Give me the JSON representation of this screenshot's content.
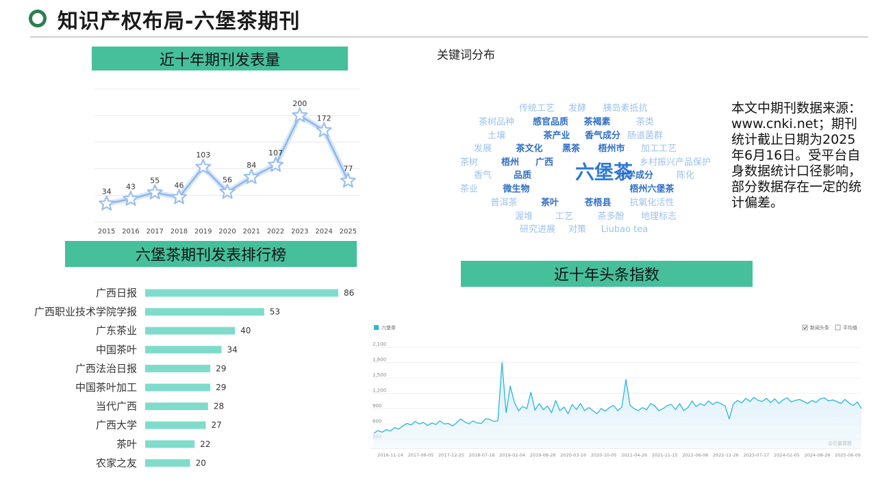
{
  "page": {
    "title": "知识产权布局-六堡茶期刊",
    "source_note": "本文中期刊数据来源：www.cnki.net；期刊统计截止日期为2025年6月16日。受平台自身数据统计口径影响，部分数据存在一定的统计偏差。"
  },
  "banners": {
    "annual": "近十年期刊发表量",
    "ranking": "六堡茶期刊发表排行榜",
    "toutiao": "近十年头条指数"
  },
  "wordcloud": {
    "title": "关键词分布",
    "words": [
      {
        "text": "传统工艺",
        "weight": 1,
        "bold": false
      },
      {
        "text": "发酵",
        "weight": 1,
        "bold": false
      },
      {
        "text": "胰岛素抵抗",
        "weight": 1,
        "bold": false
      },
      {
        "text": "茶树品种",
        "weight": 1,
        "bold": false
      },
      {
        "text": "感官品质",
        "weight": 2,
        "bold": true
      },
      {
        "text": "茶褐素",
        "weight": 2,
        "bold": true
      },
      {
        "text": "茶类",
        "weight": 1,
        "bold": false
      },
      {
        "text": "土壤",
        "weight": 1,
        "bold": false
      },
      {
        "text": "茶产业",
        "weight": 2,
        "bold": true
      },
      {
        "text": "香气成分",
        "weight": 2,
        "bold": true
      },
      {
        "text": "肠道菌群",
        "weight": 1,
        "bold": false
      },
      {
        "text": "发展",
        "weight": 1,
        "bold": false
      },
      {
        "text": "茶文化",
        "weight": 2,
        "bold": true
      },
      {
        "text": "黑茶",
        "weight": 2,
        "bold": true
      },
      {
        "text": "梧州市",
        "weight": 2,
        "bold": true
      },
      {
        "text": "加工工艺",
        "weight": 1,
        "bold": false
      },
      {
        "text": "茶树",
        "weight": 1,
        "bold": false
      },
      {
        "text": "梧州",
        "weight": 2,
        "bold": true
      },
      {
        "text": "广西",
        "weight": 2,
        "bold": true
      },
      {
        "text": "六堡茶",
        "weight": 5,
        "bold": true
      },
      {
        "text": "乡村振兴",
        "weight": 1,
        "bold": false
      },
      {
        "text": "产品保护",
        "weight": 1,
        "bold": false
      },
      {
        "text": "香气",
        "weight": 1,
        "bold": false
      },
      {
        "text": "品质",
        "weight": 2,
        "bold": true
      },
      {
        "text": "化学成分",
        "weight": 2,
        "bold": true
      },
      {
        "text": "陈化",
        "weight": 1,
        "bold": false
      },
      {
        "text": "茶业",
        "weight": 1,
        "bold": false
      },
      {
        "text": "微生物",
        "weight": 2,
        "bold": true
      },
      {
        "text": "梧州六堡茶",
        "weight": 2,
        "bold": true
      },
      {
        "text": "普洱茶",
        "weight": 1,
        "bold": false
      },
      {
        "text": "茶叶",
        "weight": 2,
        "bold": true
      },
      {
        "text": "苍梧县",
        "weight": 2,
        "bold": true
      },
      {
        "text": "抗氧化活性",
        "weight": 1,
        "bold": false
      },
      {
        "text": "渥堆",
        "weight": 1,
        "bold": false
      },
      {
        "text": "工艺",
        "weight": 1,
        "bold": false
      },
      {
        "text": "茶多酚",
        "weight": 1,
        "bold": false
      },
      {
        "text": "地理标志",
        "weight": 1,
        "bold": false
      },
      {
        "text": "研究进展",
        "weight": 1,
        "bold": false
      },
      {
        "text": "对策",
        "weight": 1,
        "bold": false
      },
      {
        "text": "Liubao tea",
        "weight": 1,
        "bold": false
      }
    ]
  },
  "chart_data": [
    {
      "type": "line",
      "x": [
        "2015",
        "2016",
        "2017",
        "2018",
        "2019",
        "2020",
        "2021",
        "2022",
        "2023",
        "2024",
        "2025"
      ],
      "values": [
        34,
        43,
        55,
        46,
        103,
        56,
        84,
        107,
        200,
        172,
        77
      ],
      "ylim": [
        0,
        250
      ],
      "grid": true,
      "marker": "star",
      "color": "#a8c8f0"
    },
    {
      "type": "bar",
      "orientation": "horizontal",
      "categories": [
        "广西日报",
        "广西职业技术学院学报",
        "广东茶业",
        "中国茶叶",
        "广西法治日报",
        "中国茶叶加工",
        "当代广西",
        "广西大学",
        "茶叶",
        "农家之友"
      ],
      "values": [
        86,
        53,
        40,
        34,
        29,
        29,
        28,
        27,
        22,
        20
      ],
      "color": "#7fdccb"
    },
    {
      "type": "area",
      "series": [
        {
          "name": "六堡茶"
        }
      ],
      "legend": [
        "新闻头条",
        "平均值"
      ],
      "y_ticks": [
        "2,100",
        "1,800",
        "1,500",
        "1,200",
        "900",
        "600",
        "300"
      ],
      "x_ticks": [
        "2016-11-14",
        "2017-06-05",
        "2017-12-25",
        "2018-07-16",
        "2019-02-04",
        "2019-08-26",
        "2020-03-16",
        "2020-10-05",
        "2021-04-26",
        "2021-11-15",
        "2022-06-06",
        "2022-12-26",
        "2023-07-17",
        "2024-02-05",
        "2024-08-26",
        "2025-06-09"
      ],
      "ylim": [
        150,
        2250
      ],
      "watermark": "@巨量算数",
      "points": [
        420,
        470,
        440,
        490,
        460,
        530,
        500,
        560,
        610,
        580,
        650,
        600,
        630,
        570,
        620,
        590,
        660,
        600,
        610,
        560,
        620,
        700,
        640,
        600,
        660,
        620,
        610,
        700,
        690,
        650,
        660,
        1800,
        820,
        1340,
        1020,
        860,
        940,
        900,
        1220,
        870,
        1000,
        880,
        950,
        820,
        1060,
        860,
        930,
        800,
        980,
        880,
        1000,
        860,
        920,
        860,
        800,
        900,
        850,
        920,
        960,
        860,
        930,
        1470,
        960,
        900,
        860,
        920,
        880,
        1000,
        950,
        860,
        900,
        960,
        980,
        880,
        1000,
        860,
        920,
        1050,
        940,
        1000,
        960,
        1050,
        980,
        1030,
        1000,
        950,
        700,
        990,
        1060,
        1010,
        1100,
        1040,
        1120,
        1060,
        1040,
        1100,
        1020,
        1090,
        1000,
        1070,
        1110,
        1030,
        1060,
        1080,
        1040,
        1000,
        1060,
        1020,
        1090,
        1110,
        1050,
        1070,
        1040,
        1000,
        1080,
        1010,
        960,
        1030,
        900
      ]
    }
  ]
}
